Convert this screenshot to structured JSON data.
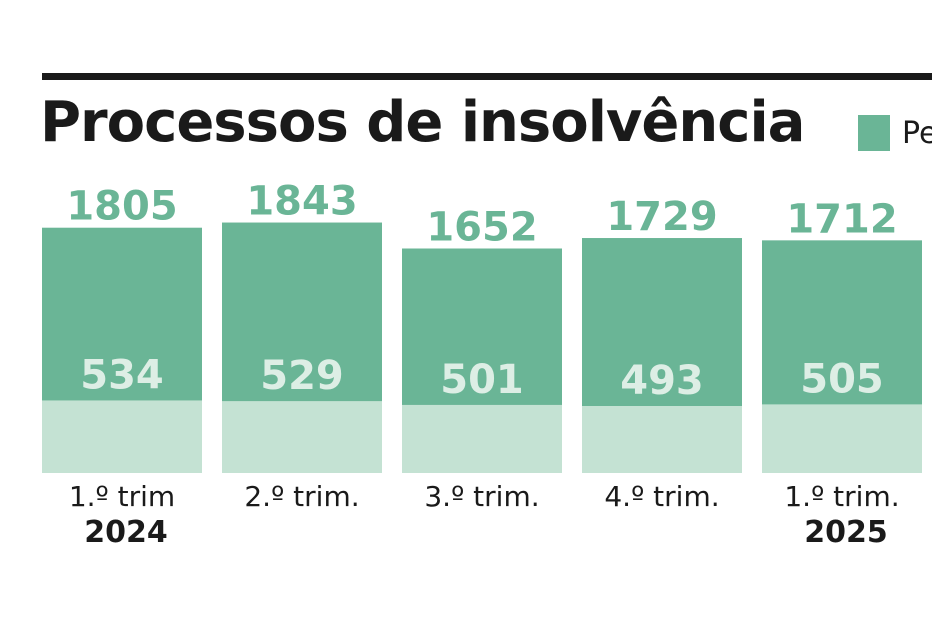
{
  "header": {
    "title": "Processos de insolvência",
    "legend": [
      {
        "label": "Pe",
        "color": "#6ab596"
      }
    ]
  },
  "colors": {
    "total": "#6ab596",
    "part": "#c4e2d3",
    "total_label": "#6ab596",
    "part_label": "#ddeee5",
    "text": "#1a1a1a"
  },
  "chart_data": {
    "type": "bar",
    "categories": [
      "1.º trim",
      "2.º trim.",
      "3.º trim.",
      "4.º trim.",
      "1.º trim."
    ],
    "years": [
      "2024",
      "",
      "",
      "",
      "2025"
    ],
    "series": [
      {
        "values": [
          1805,
          1843,
          1652,
          1729,
          1712
        ]
      },
      {
        "values": [
          534,
          529,
          501,
          493,
          505
        ]
      }
    ],
    "ylim": [
      0,
      1950
    ]
  }
}
